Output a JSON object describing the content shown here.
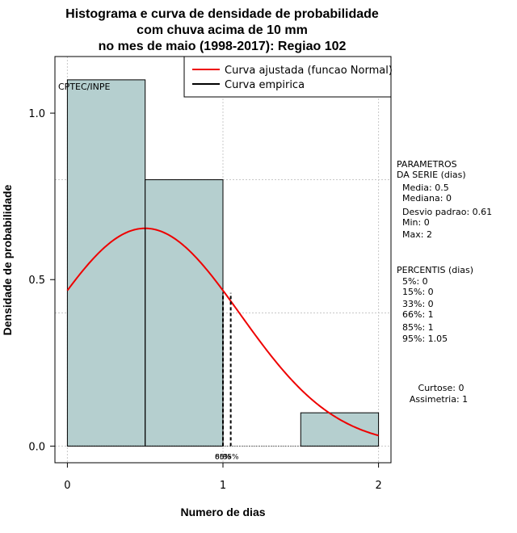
{
  "chart_data": {
    "type": "bar",
    "title_lines": [
      "Histograma e curva de densidade de probabilidade",
      "com chuva acima de 10 mm",
      "no mes de maio (1998-2017): Regiao 102"
    ],
    "xlabel": "Numero de dias",
    "ylabel": "Densidade de probabilidade",
    "xlim": [
      -0.08,
      2.08
    ],
    "ylim": [
      -0.05,
      1.17
    ],
    "x_ticks": [
      "0",
      "1",
      "2"
    ],
    "y_ticks": [
      "0.0",
      "0.5",
      "1.0"
    ],
    "grid": true,
    "histogram": [
      {
        "x0": 0,
        "x1": 0.5,
        "density": 1.1
      },
      {
        "x0": 0.5,
        "x1": 1.0,
        "density": 0.8
      },
      {
        "x0": 1.0,
        "x1": 1.5,
        "density": 0.0
      },
      {
        "x0": 1.5,
        "x1": 2.0,
        "density": 0.1
      }
    ],
    "empirical_line": {
      "x": 0.5
    },
    "percentile_lines": [
      {
        "x": 1.0,
        "label": "66%"
      },
      {
        "x": 1.0,
        "label": "85%"
      },
      {
        "x": 1.05,
        "label": "95%"
      }
    ],
    "normal_fit": {
      "mean": 0.5,
      "sd": 0.61,
      "color": "#ee0000"
    },
    "legend": {
      "position": "top-right",
      "entries": [
        {
          "label": "Curva ajustada (funcao Normal)",
          "color": "#ee0000"
        },
        {
          "label": "Curva empirica",
          "color": "#000000"
        }
      ]
    },
    "credit": "CPTEC/INPE",
    "bar_color": "#b5cfcf",
    "parametros": {
      "header": [
        "PARAMETROS",
        "DA SERIE (dias)"
      ],
      "lines": [
        "Media: 0.5",
        "Mediana: 0",
        "Desvio padrao: 0.61",
        "Min: 0",
        "Max: 2"
      ]
    },
    "percentis": {
      "header": "PERCENTIS (dias)",
      "lines": [
        "5%: 0",
        "15%: 0",
        "33%: 0",
        "66%: 1",
        "85%: 1",
        "95%: 1.05"
      ]
    },
    "shape": {
      "lines": [
        "Curtose: 0",
        "Assimetria: 1"
      ]
    }
  }
}
